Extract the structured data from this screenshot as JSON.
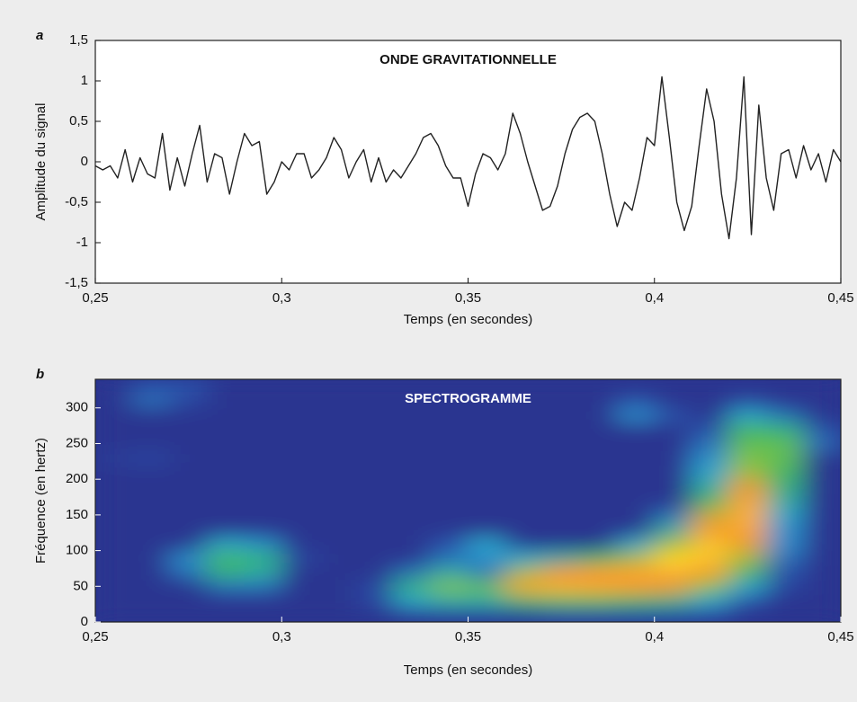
{
  "chart_data": [
    {
      "type": "line",
      "panel": "a",
      "title": "ONDE GRAVITATIONNELLE",
      "xlabel": "Temps (en secondes)",
      "ylabel": "Amplitude du signal",
      "xlim": [
        0.25,
        0.45
      ],
      "ylim": [
        -1.5,
        1.5
      ],
      "xticks": [
        {
          "value": 0.25,
          "label": "0,25"
        },
        {
          "value": 0.3,
          "label": "0,3"
        },
        {
          "value": 0.35,
          "label": "0,35"
        },
        {
          "value": 0.4,
          "label": "0,4"
        },
        {
          "value": 0.45,
          "label": "0,45"
        }
      ],
      "yticks": [
        {
          "value": -1.5,
          "label": "-1,5"
        },
        -1,
        {
          "value": -0.5,
          "label": "-0,5"
        },
        0,
        {
          "value": 0.5,
          "label": "0,5"
        },
        1,
        {
          "value": 1.5,
          "label": "1,5"
        }
      ],
      "color": "#222222",
      "x": [
        0.25,
        0.252,
        0.254,
        0.256,
        0.258,
        0.26,
        0.262,
        0.264,
        0.266,
        0.268,
        0.27,
        0.272,
        0.274,
        0.276,
        0.278,
        0.28,
        0.282,
        0.284,
        0.286,
        0.288,
        0.29,
        0.292,
        0.294,
        0.296,
        0.298,
        0.3,
        0.302,
        0.304,
        0.306,
        0.308,
        0.31,
        0.312,
        0.314,
        0.316,
        0.318,
        0.32,
        0.322,
        0.324,
        0.326,
        0.328,
        0.33,
        0.332,
        0.334,
        0.336,
        0.338,
        0.34,
        0.342,
        0.344,
        0.346,
        0.348,
        0.35,
        0.352,
        0.354,
        0.356,
        0.358,
        0.36,
        0.362,
        0.364,
        0.366,
        0.368,
        0.37,
        0.372,
        0.374,
        0.376,
        0.378,
        0.38,
        0.382,
        0.384,
        0.386,
        0.388,
        0.39,
        0.392,
        0.394,
        0.396,
        0.398,
        0.4,
        0.402,
        0.404,
        0.406,
        0.408,
        0.41,
        0.412,
        0.414,
        0.416,
        0.418,
        0.42,
        0.422,
        0.424,
        0.426,
        0.428,
        0.43,
        0.432,
        0.434,
        0.436,
        0.438,
        0.44,
        0.442,
        0.444,
        0.446,
        0.448,
        0.45
      ],
      "values": [
        -0.05,
        -0.1,
        -0.05,
        -0.2,
        0.15,
        -0.25,
        0.05,
        -0.15,
        -0.2,
        0.35,
        -0.35,
        0.05,
        -0.3,
        0.1,
        0.45,
        -0.25,
        0.1,
        0.05,
        -0.4,
        0.0,
        0.35,
        0.2,
        0.25,
        -0.4,
        -0.25,
        0.0,
        -0.1,
        0.1,
        0.1,
        -0.2,
        -0.1,
        0.05,
        0.3,
        0.15,
        -0.2,
        0.0,
        0.15,
        -0.25,
        0.05,
        -0.25,
        -0.1,
        -0.2,
        -0.05,
        0.1,
        0.3,
        0.35,
        0.2,
        -0.05,
        -0.2,
        -0.2,
        -0.55,
        -0.15,
        0.1,
        0.05,
        -0.1,
        0.1,
        0.6,
        0.35,
        0.0,
        -0.3,
        -0.6,
        -0.55,
        -0.3,
        0.1,
        0.4,
        0.55,
        0.6,
        0.5,
        0.1,
        -0.4,
        -0.8,
        -0.5,
        -0.6,
        -0.2,
        0.3,
        0.2,
        1.05,
        0.3,
        -0.5,
        -0.85,
        -0.55,
        0.2,
        0.9,
        0.5,
        -0.4,
        -0.95,
        -0.2,
        1.05,
        -0.9,
        0.7,
        -0.2,
        -0.6,
        0.1,
        0.15,
        -0.2,
        0.2,
        -0.1,
        0.1,
        -0.25,
        0.15,
        0.0
      ]
    },
    {
      "type": "heatmap",
      "panel": "b",
      "title": "SPECTROGRAMME",
      "xlabel": "Temps (en secondes)",
      "ylabel": "Fréquence (en hertz)",
      "xlim": [
        0.25,
        0.45
      ],
      "ylim": [
        0,
        340
      ],
      "xticks": [
        {
          "value": 0.25,
          "label": "0,25"
        },
        {
          "value": 0.3,
          "label": "0,3"
        },
        {
          "value": 0.35,
          "label": "0,35"
        },
        {
          "value": 0.4,
          "label": "0,4"
        },
        {
          "value": 0.45,
          "label": "0,45"
        }
      ],
      "yticks": [
        0,
        50,
        100,
        150,
        200,
        250,
        300
      ],
      "colors": [
        "#2a3590",
        "#2a4fa8",
        "#2aa6d6",
        "#35b56a",
        "#8cc63f",
        "#f7941d",
        "#fbb040",
        "#fff200"
      ],
      "xbins": [
        0.25,
        0.26,
        0.27,
        0.28,
        0.29,
        0.3,
        0.31,
        0.32,
        0.33,
        0.34,
        0.35,
        0.36,
        0.37,
        0.38,
        0.39,
        0.4,
        0.41,
        0.42,
        0.43,
        0.44,
        0.45
      ],
      "ybins": [
        0,
        20,
        40,
        60,
        80,
        100,
        120,
        140,
        160,
        180,
        200,
        220,
        240,
        260,
        280,
        300,
        320,
        340
      ],
      "z": [
        [
          0,
          0,
          0,
          0,
          0,
          0,
          0,
          0,
          0.05,
          0.1,
          0.1,
          0.1,
          0.15,
          0.15,
          0.15,
          0.15,
          0.1,
          0,
          0,
          0
        ],
        [
          0,
          0,
          0,
          0,
          0,
          0,
          0,
          0.1,
          0.3,
          0.35,
          0.35,
          0.45,
          0.5,
          0.5,
          0.45,
          0.4,
          0.3,
          0.15,
          0,
          0
        ],
        [
          0,
          0,
          0,
          0.2,
          0.2,
          0,
          0,
          0.1,
          0.4,
          0.55,
          0.5,
          0.8,
          0.85,
          0.8,
          0.75,
          0.7,
          0.55,
          0.3,
          0.1,
          0
        ],
        [
          0,
          0,
          0.2,
          0.4,
          0.35,
          0,
          0,
          0,
          0.2,
          0.35,
          0.2,
          0.6,
          0.7,
          0.75,
          0.8,
          0.85,
          0.75,
          0.45,
          0.15,
          0
        ],
        [
          0,
          0,
          0.25,
          0.45,
          0.4,
          0.1,
          0,
          0,
          0,
          0.2,
          0.25,
          0.3,
          0.35,
          0.45,
          0.6,
          0.95,
          0.9,
          0.6,
          0.2,
          0
        ],
        [
          0,
          0,
          0,
          0.3,
          0.25,
          0,
          0,
          0,
          0,
          0.15,
          0.3,
          0,
          0,
          0,
          0.3,
          0.6,
          0.9,
          0.7,
          0.25,
          0
        ],
        [
          0,
          0,
          0,
          0,
          0,
          0,
          0,
          0,
          0,
          0,
          0,
          0,
          0,
          0,
          0,
          0.35,
          0.75,
          0.8,
          0.25,
          0
        ],
        [
          0,
          0,
          0,
          0,
          0,
          0,
          0,
          0,
          0,
          0,
          0,
          0,
          0,
          0,
          0,
          0.2,
          0.65,
          0.85,
          0.3,
          0
        ],
        [
          0,
          0,
          0,
          0,
          0,
          0,
          0,
          0,
          0,
          0,
          0,
          0,
          0,
          0,
          0,
          0,
          0.45,
          0.8,
          0.35,
          0
        ],
        [
          0,
          0,
          0,
          0,
          0,
          0,
          0,
          0,
          0,
          0,
          0,
          0,
          0,
          0,
          0,
          0,
          0.35,
          0.7,
          0.4,
          0
        ],
        [
          0,
          0,
          0,
          0,
          0,
          0,
          0,
          0,
          0,
          0,
          0,
          0,
          0,
          0,
          0,
          0,
          0.3,
          0.6,
          0.45,
          0
        ],
        [
          0.05,
          0.1,
          0,
          0,
          0,
          0,
          0,
          0,
          0,
          0,
          0,
          0,
          0,
          0,
          0,
          0,
          0.25,
          0.55,
          0.5,
          0
        ],
        [
          0,
          0,
          0,
          0,
          0,
          0,
          0,
          0,
          0,
          0,
          0,
          0,
          0,
          0,
          0,
          0,
          0.2,
          0.5,
          0.5,
          0.2
        ],
        [
          0,
          0,
          0,
          0,
          0,
          0,
          0,
          0,
          0,
          0,
          0,
          0,
          0,
          0,
          0,
          0,
          0.15,
          0.45,
          0.4,
          0.15
        ],
        [
          0,
          0,
          0,
          0,
          0,
          0,
          0,
          0,
          0,
          0,
          0,
          0,
          0,
          0,
          0.25,
          0.15,
          0,
          0.3,
          0.2,
          0
        ],
        [
          0,
          0.2,
          0.1,
          0,
          0,
          0,
          0,
          0,
          0,
          0,
          0,
          0,
          0,
          0,
          0.15,
          0,
          0,
          0.1,
          0,
          0
        ],
        [
          0,
          0.15,
          0.15,
          0,
          0,
          0,
          0,
          0,
          0,
          0,
          0,
          0,
          0,
          0,
          0,
          0,
          0,
          0,
          0,
          0
        ]
      ]
    }
  ]
}
